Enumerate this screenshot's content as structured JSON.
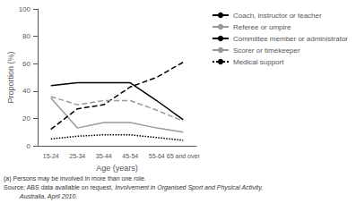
{
  "chart_data": {
    "type": "line",
    "xlabel": "Age (years)",
    "ylabel": "Proportion (%)",
    "categories": [
      "15-24",
      "25-34",
      "35-44",
      "45-54",
      "55-64",
      "65 and over"
    ],
    "series": [
      {
        "name": "Coach, instructor or teacher",
        "color": "#000000",
        "line_style": "solid",
        "values": [
          44,
          46,
          46,
          46,
          33,
          19
        ]
      },
      {
        "name": "Referee or umpire",
        "color": "#999999",
        "line_style": "solid",
        "values": [
          35,
          13,
          17,
          17,
          13,
          10
        ]
      },
      {
        "name": "Committee member or administrator",
        "color": "#000000",
        "line_style": "dashed",
        "values": [
          12,
          27,
          30,
          43,
          50,
          61
        ]
      },
      {
        "name": "Scorer or timekeeper",
        "color": "#999999",
        "line_style": "dashed",
        "values": [
          36,
          30,
          33,
          33,
          26,
          18
        ]
      },
      {
        "name": "Medical support",
        "color": "#000000",
        "line_style": "dotted",
        "values": [
          5,
          7,
          8,
          8,
          6,
          4
        ]
      }
    ],
    "ylim": [
      0,
      100
    ],
    "yticks": [
      0,
      20,
      40,
      60,
      80,
      100
    ],
    "grid": false,
    "legend": "right",
    "annotations": [
      "(a) Persons may be involved in more than one role.",
      "Source: ABS data available on request,",
      "Involvement in Organised Sport and Physical Activity,",
      "Australia, April 2010."
    ]
  }
}
